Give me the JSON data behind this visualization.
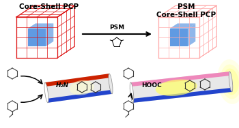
{
  "title_left": "Core-Shell PCP",
  "title_right": "PSM\nCore-Shell PCP",
  "arrow_label": "PSM",
  "label_amine": "H₂N",
  "label_acid": "HOOC",
  "bg_color": "#ffffff",
  "cube_left_outer": "#dd1111",
  "cube_left_inner": "#4488dd",
  "cube_right_outer": "#ffaaaa",
  "cube_right_inner": "#4488dd",
  "tube_red": "#cc2200",
  "tube_blue": "#2244cc",
  "tube_pink": "#ee88bb",
  "tube_gray_light": "#e8e8e8",
  "tube_gray_dark": "#b0b0b0",
  "tube_yellow_glow": "#ffff66",
  "mol_color": "#444444",
  "font_size_title": 7.5,
  "font_size_label": 6.5,
  "font_size_arrow": 6.5,
  "font_size_mol": 6.0
}
